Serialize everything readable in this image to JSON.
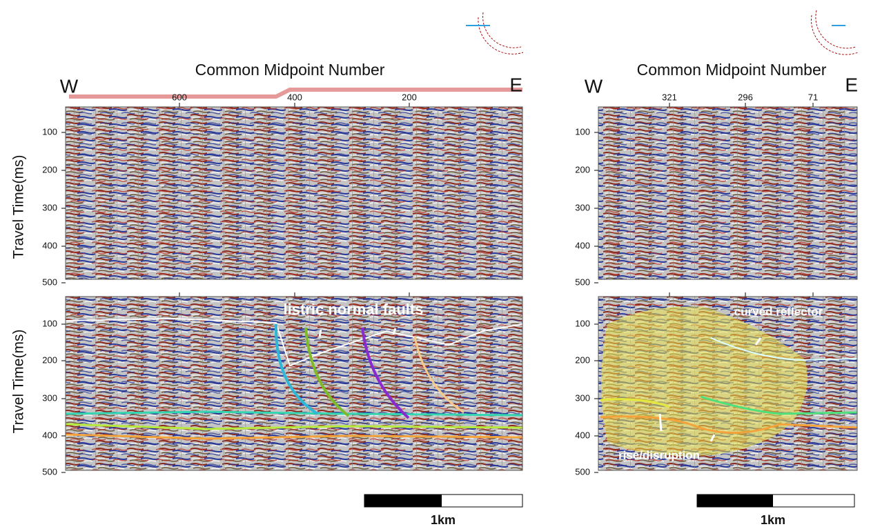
{
  "left": {
    "title": "Common Midpoint Number",
    "west": "W",
    "east": "E",
    "x_ticks": [
      600,
      400,
      200
    ],
    "top": {
      "y_label": "Travel Time(ms)",
      "y_ticks": [
        100,
        200,
        300,
        400,
        500
      ]
    },
    "bottom": {
      "y_label": "Travel Time(ms)",
      "y_ticks": [
        100,
        200,
        300,
        400,
        500
      ],
      "annotation": "listric normal faults"
    },
    "scale_bar": "1km"
  },
  "right": {
    "title": "Common Midpoint Number",
    "west": "W",
    "east": "E",
    "x_ticks": [
      321,
      296,
      71
    ],
    "top": {
      "y_ticks": [
        100,
        200,
        300,
        400,
        500
      ]
    },
    "bottom": {
      "y_ticks": [
        100,
        200,
        300,
        400,
        500
      ],
      "annotations": [
        "curved reflector",
        "rise/disruption"
      ]
    },
    "scale_bar": "1km"
  }
}
